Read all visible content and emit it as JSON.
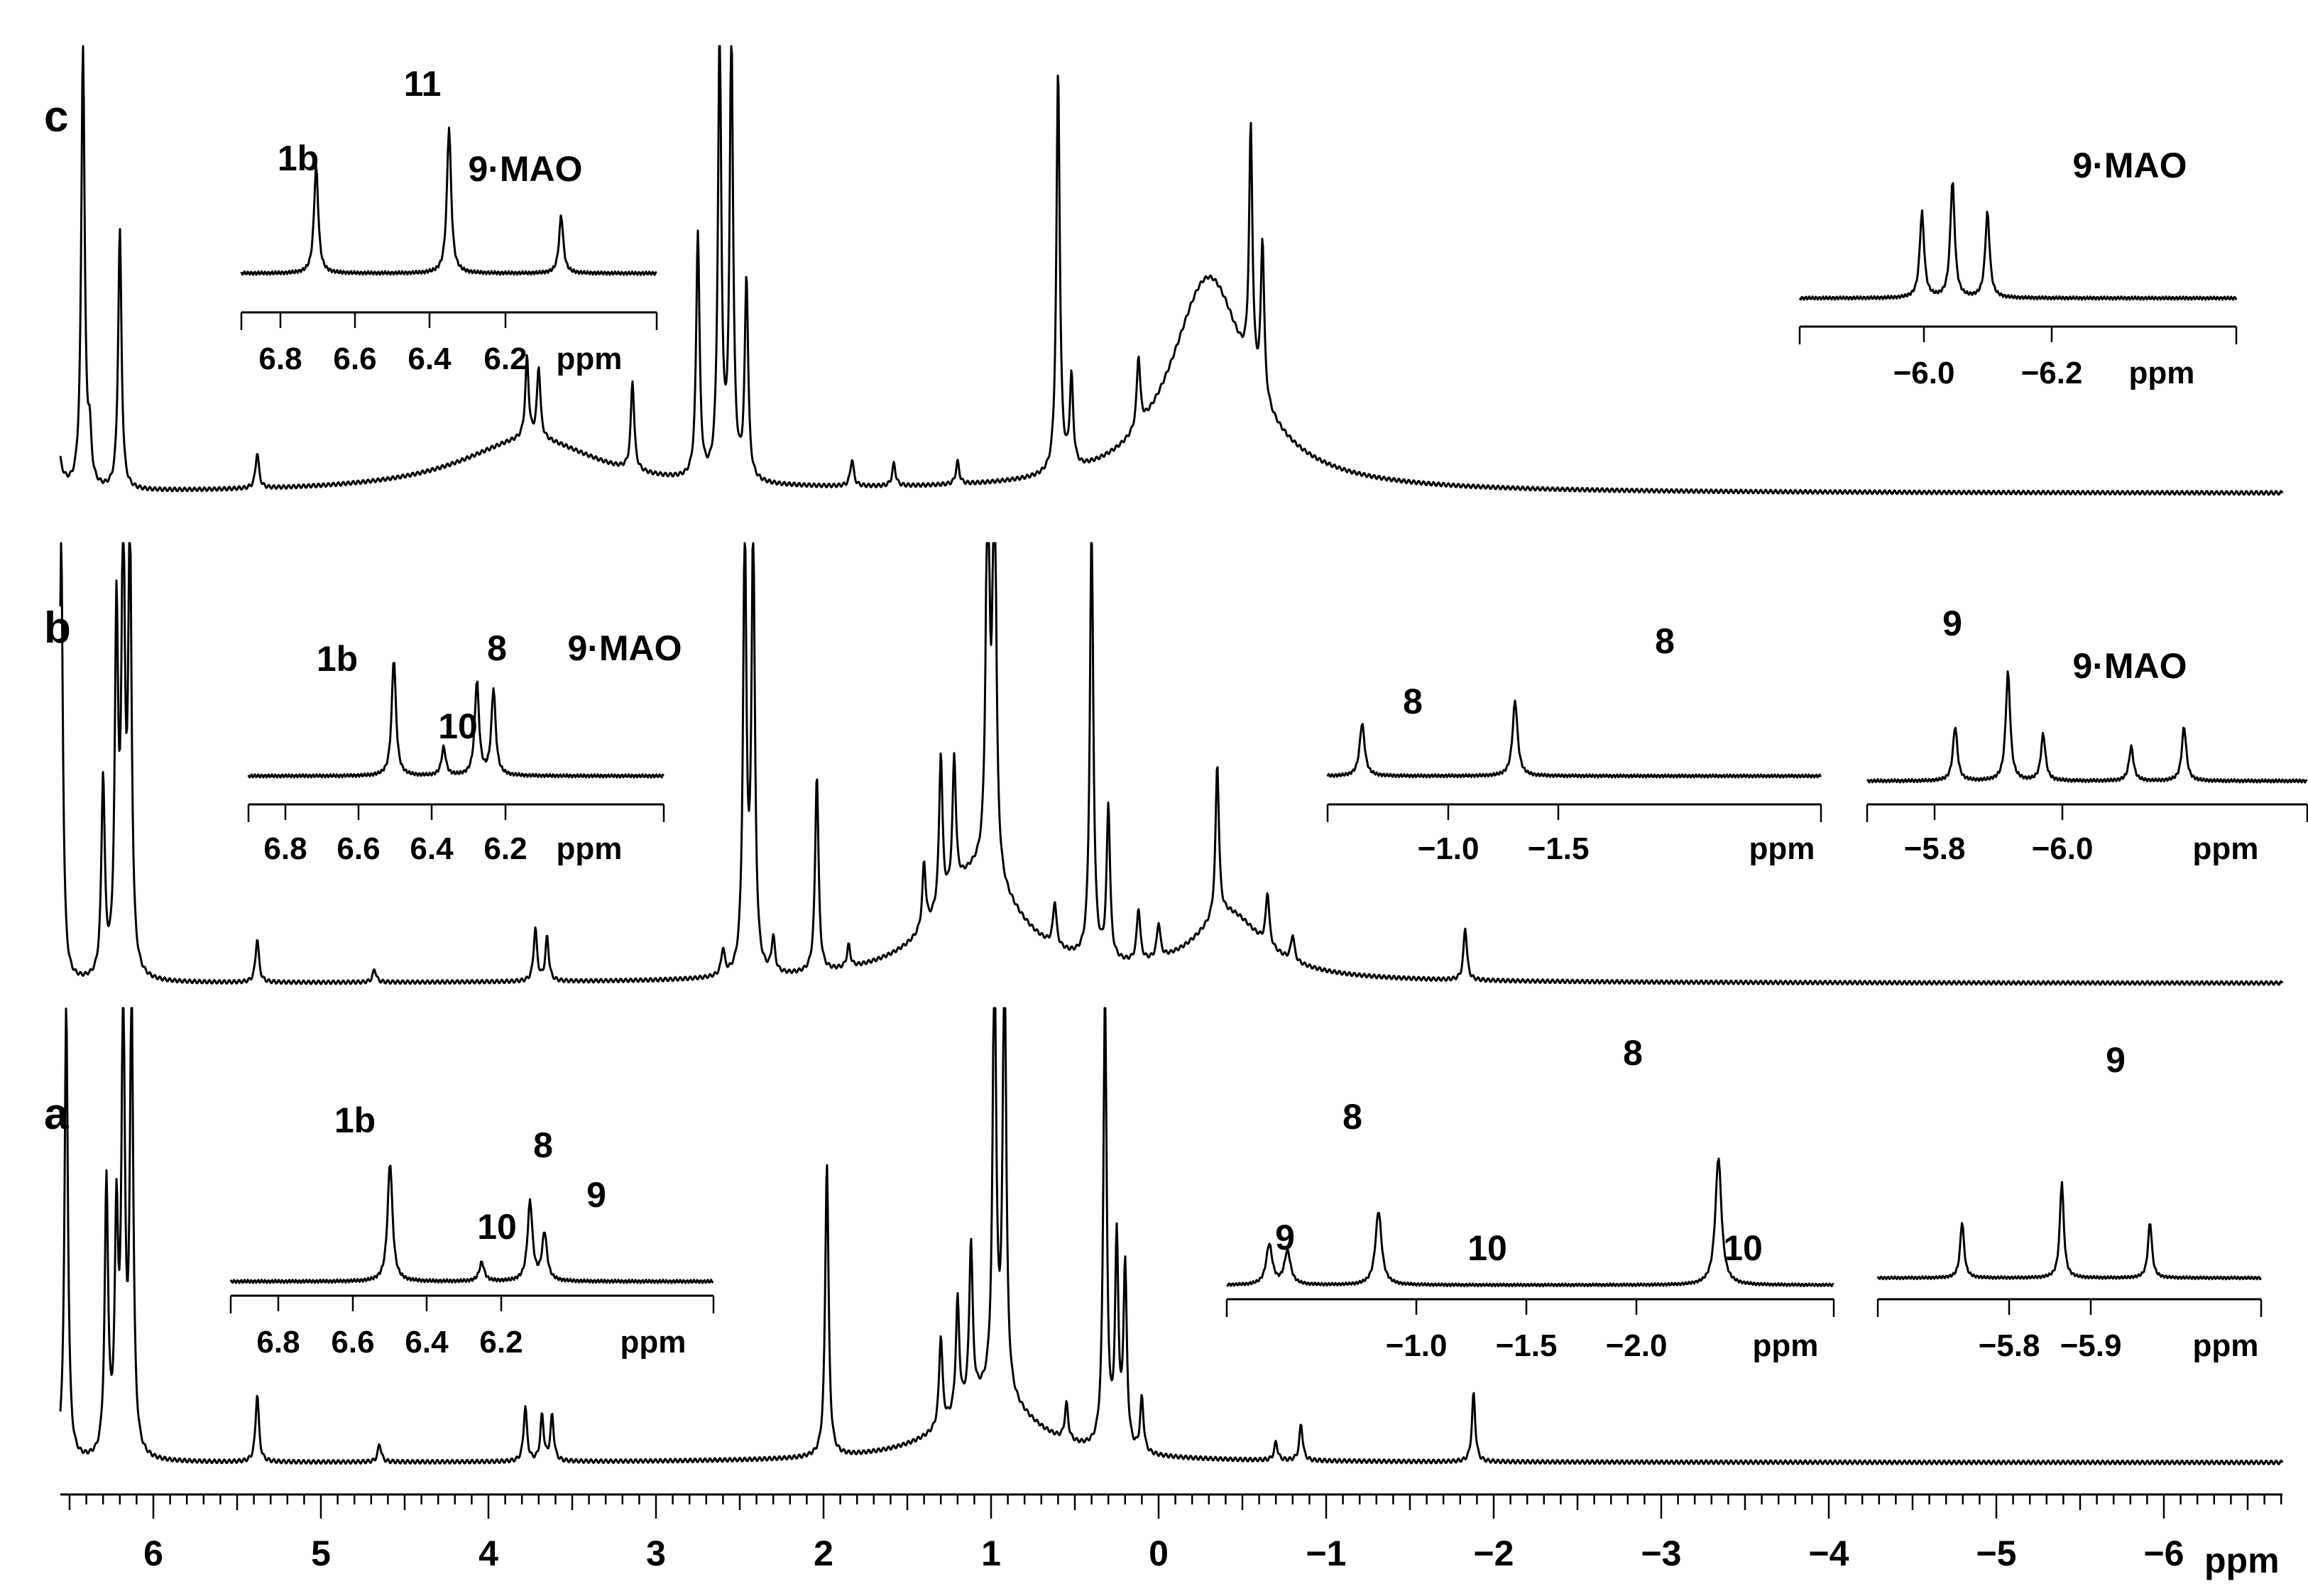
{
  "chart_data": {
    "type": "line",
    "xlabel": "ppm",
    "xlim": [
      6.9,
      -6.9
    ],
    "x_ticks": [
      "6",
      "5",
      "4",
      "3",
      "2",
      "1",
      "0",
      "−1",
      "−2",
      "−3",
      "−4",
      "−5",
      "−6"
    ],
    "series": [
      {
        "name": "c",
        "peaks": [
          {
            "x": 6.6,
            "h": 1.0
          },
          {
            "x": 6.42,
            "h": 1.0
          },
          {
            "x": 6.38,
            "h": 0.1
          },
          {
            "x": 6.2,
            "h": 0.58
          },
          {
            "x": 5.38,
            "h": 0.08
          },
          {
            "x": 3.77,
            "h": 0.18
          },
          {
            "x": 3.7,
            "h": 0.16
          },
          {
            "x": 3.14,
            "h": 0.2
          },
          {
            "x": 2.75,
            "h": 0.55
          },
          {
            "x": 2.62,
            "h": 1.0
          },
          {
            "x": 2.55,
            "h": 1.0
          },
          {
            "x": 2.46,
            "h": 0.45
          },
          {
            "x": 1.83,
            "h": 0.06
          },
          {
            "x": 1.58,
            "h": 0.05
          },
          {
            "x": 1.2,
            "h": 0.05
          },
          {
            "x": 0.6,
            "h": 0.9
          },
          {
            "x": 0.52,
            "h": 0.2
          },
          {
            "x": 0.12,
            "h": 0.16
          },
          {
            "x": -0.55,
            "h": 0.55
          },
          {
            "x": -0.62,
            "h": 0.35
          }
        ],
        "broad": [
          {
            "x": -0.3,
            "h": 0.48,
            "w": 0.28
          },
          {
            "x": 3.75,
            "h": 0.12,
            "w": 0.5
          }
        ]
      },
      {
        "name": "b",
        "peaks": [
          {
            "x": 6.55,
            "h": 1.0
          },
          {
            "x": 6.3,
            "h": 0.45
          },
          {
            "x": 6.22,
            "h": 0.8
          },
          {
            "x": 6.18,
            "h": 1.0
          },
          {
            "x": 6.14,
            "h": 1.0
          },
          {
            "x": 5.38,
            "h": 0.1
          },
          {
            "x": 4.68,
            "h": 0.03
          },
          {
            "x": 3.72,
            "h": 0.12
          },
          {
            "x": 3.65,
            "h": 0.1
          },
          {
            "x": 2.6,
            "h": 0.06
          },
          {
            "x": 2.47,
            "h": 1.0
          },
          {
            "x": 2.42,
            "h": 1.0
          },
          {
            "x": 2.3,
            "h": 0.08
          },
          {
            "x": 2.04,
            "h": 0.45
          },
          {
            "x": 1.85,
            "h": 0.05
          },
          {
            "x": 1.4,
            "h": 0.15
          },
          {
            "x": 1.3,
            "h": 0.35
          },
          {
            "x": 1.22,
            "h": 0.3
          },
          {
            "x": 1.02,
            "h": 1.0
          },
          {
            "x": 0.98,
            "h": 1.0
          },
          {
            "x": 0.62,
            "h": 0.1
          },
          {
            "x": 0.4,
            "h": 1.0
          },
          {
            "x": 0.3,
            "h": 0.35
          },
          {
            "x": 0.12,
            "h": 0.12
          },
          {
            "x": 0.0,
            "h": 0.08
          },
          {
            "x": -0.35,
            "h": 0.35
          },
          {
            "x": -0.65,
            "h": 0.12
          },
          {
            "x": -0.8,
            "h": 0.06
          },
          {
            "x": -1.83,
            "h": 0.12
          }
        ],
        "broad": [
          {
            "x": 1.08,
            "h": 0.25,
            "w": 0.3
          },
          {
            "x": -0.42,
            "h": 0.15,
            "w": 0.25
          }
        ]
      },
      {
        "name": "a",
        "peaks": [
          {
            "x": 6.52,
            "h": 1.0
          },
          {
            "x": 6.28,
            "h": 0.6
          },
          {
            "x": 6.22,
            "h": 0.5
          },
          {
            "x": 6.18,
            "h": 1.0
          },
          {
            "x": 6.13,
            "h": 1.0
          },
          {
            "x": 5.38,
            "h": 0.15
          },
          {
            "x": 4.65,
            "h": 0.04
          },
          {
            "x": 3.78,
            "h": 0.12
          },
          {
            "x": 3.68,
            "h": 0.1
          },
          {
            "x": 3.62,
            "h": 0.1
          },
          {
            "x": 1.98,
            "h": 0.65
          },
          {
            "x": 1.3,
            "h": 0.2
          },
          {
            "x": 1.2,
            "h": 0.25
          },
          {
            "x": 1.12,
            "h": 0.35
          },
          {
            "x": 0.98,
            "h": 1.0
          },
          {
            "x": 0.92,
            "h": 1.0
          },
          {
            "x": 0.55,
            "h": 0.08
          },
          {
            "x": 0.32,
            "h": 1.0
          },
          {
            "x": 0.25,
            "h": 0.45
          },
          {
            "x": 0.2,
            "h": 0.4
          },
          {
            "x": 0.1,
            "h": 0.12
          },
          {
            "x": -0.7,
            "h": 0.04
          },
          {
            "x": -0.85,
            "h": 0.08
          },
          {
            "x": -1.88,
            "h": 0.15
          }
        ],
        "broad": [
          {
            "x": 1.0,
            "h": 0.15,
            "w": 0.3
          }
        ]
      }
    ],
    "insets": [
      {
        "spectrum": "c",
        "ticks": [
          "6.8",
          "6.6",
          "6.4",
          "6.2"
        ],
        "unit": "ppm",
        "labels": [
          {
            "text": "1b",
            "at": "6.60 ppm"
          },
          {
            "text": "11",
            "at": "6.39 ppm"
          },
          {
            "text": "9·MAO",
            "at": "6.17 ppm"
          }
        ]
      },
      {
        "spectrum": "c",
        "ticks": [
          "−6.0",
          "−6.2"
        ],
        "unit": "ppm",
        "labels": [
          {
            "text": "9·MAO",
            "at": "−6.08 ppm"
          }
        ]
      },
      {
        "spectrum": "b",
        "ticks": [
          "6.8",
          "6.6",
          "6.4",
          "6.2"
        ],
        "unit": "ppm",
        "labels": [
          {
            "text": "1b",
            "at": "6.55 ppm"
          },
          {
            "text": "10",
            "at": "6.28 ppm"
          },
          {
            "text": "8",
            "at": "6.19 ppm"
          },
          {
            "text": "9·MAO",
            "at": "6.15 ppm"
          }
        ]
      },
      {
        "spectrum": "b",
        "ticks": [
          "−1.0",
          "−1.5"
        ],
        "unit": "ppm",
        "labels": [
          {
            "text": "8",
            "at": "−0.82 ppm"
          },
          {
            "text": "8",
            "at": "−1.82 ppm"
          }
        ]
      },
      {
        "spectrum": "b",
        "ticks": [
          "−5.8",
          "−6.0"
        ],
        "unit": "ppm",
        "labels": [
          {
            "text": "9",
            "at": "−5.85 ppm"
          },
          {
            "text": "9·MAO",
            "at": "−6.03 ppm"
          }
        ]
      },
      {
        "spectrum": "a",
        "ticks": [
          "6.8",
          "6.6",
          "6.4",
          "6.2"
        ],
        "unit": "ppm",
        "labels": [
          {
            "text": "1b",
            "at": "6.52 ppm"
          },
          {
            "text": "10",
            "at": "6.25 ppm"
          },
          {
            "text": "8",
            "at": "6.17 ppm"
          },
          {
            "text": "9",
            "at": "6.15 ppm"
          }
        ]
      },
      {
        "spectrum": "a",
        "ticks": [
          "−1.0",
          "−1.5",
          "−2.0"
        ],
        "unit": "ppm",
        "labels": [
          {
            "text": "9",
            "at": "−0.63 ppm"
          },
          {
            "text": "8",
            "at": "−0.87 ppm"
          },
          {
            "text": "10",
            "at": "−1.45 ppm"
          },
          {
            "text": "8",
            "at": "−1.88 ppm"
          },
          {
            "text": "10",
            "at": "−2.29 ppm"
          }
        ]
      },
      {
        "spectrum": "a",
        "ticks": [
          "−5.8",
          "−5.9"
        ],
        "unit": "ppm",
        "labels": [
          {
            "text": "9",
            "at": "−5.93 ppm"
          }
        ]
      }
    ]
  }
}
